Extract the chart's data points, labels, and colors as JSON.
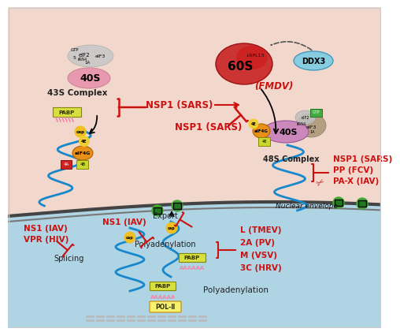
{
  "bg_cytoplasm": "#f2d8cc",
  "bg_nucleus": "#afd4e4",
  "label_color_black": "#222222",
  "label_color_red": "#cc1111",
  "ribosome_40s_color": "#e899b0",
  "ribosome_60s_color": "#cc3333",
  "eif2_color": "#bbbbbb",
  "pabp_color": "#d8e040",
  "cap_color": "#f0c020",
  "eif4g_color": "#e89018",
  "eif4e_color": "#f0d040",
  "ddx3_color": "#88cce0",
  "eif3_color": "#b09878",
  "mrna_color": "#1888cc",
  "green_pore": "#44aa33",
  "scissors_color": "#cc3333",
  "complex_43s_label": "43S Complex",
  "complex_48s_label": "48S Complex",
  "nsp1_sars_label1": "NSP1 (SARS)",
  "nsp1_sars_label2": "NSP1 (SARS)",
  "nsp1_sars_label3": "NSP1 (SARS)",
  "fmdv_label": "(FMDV)",
  "pp_fcv_label": "PP (FCV)",
  "pax_iav_label": "PA-X (IAV)",
  "ns1_iav_label1": "NS1 (IAV)",
  "ns1_iav_label2": "NS1 (IAV)",
  "vpr_hiv_label": "VPR (HIV)",
  "splicing_label": "Splicing",
  "polyadenylation_label1": "Polyadenylation",
  "polyadenylation_label2": "Polyadenylation",
  "export_label": "Export",
  "nuclear_envelope_label": "Nuclear envelope",
  "l_tmev_label": "L (TMEV)",
  "a2_pv_label": "2A (PV)",
  "m_vsv_label": "M (VSV)",
  "c3_hrv_label": "3C (HRV)",
  "pol2_label": "POL-Ⅱ",
  "rpl13_label": "↓RPL13"
}
